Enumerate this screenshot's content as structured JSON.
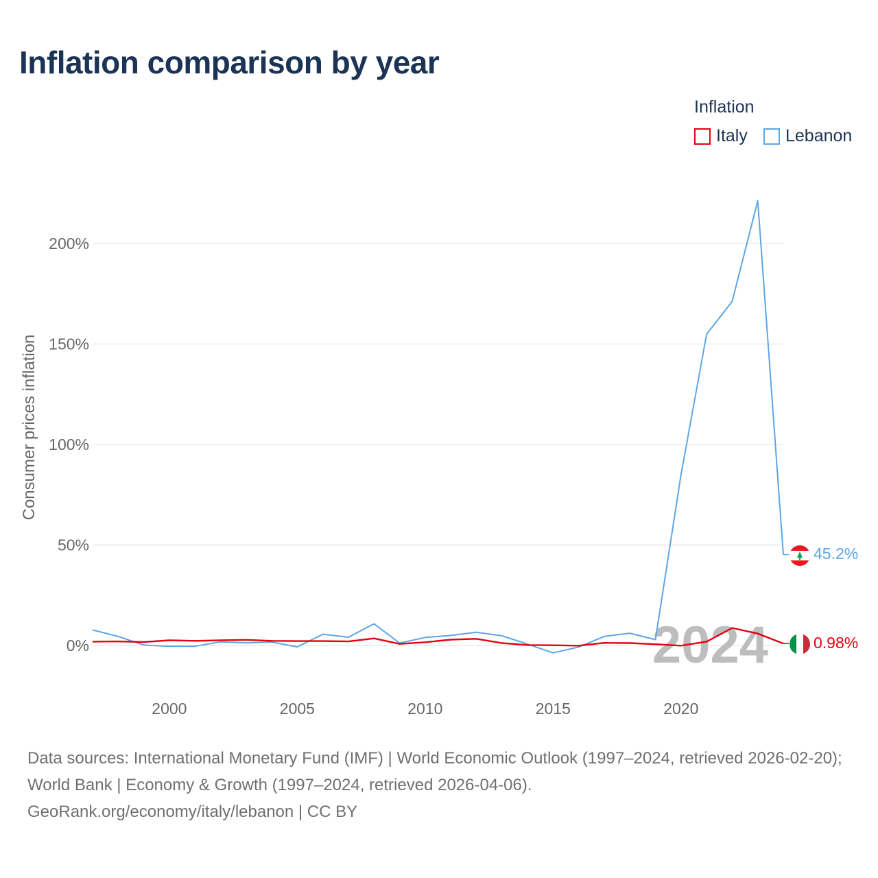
{
  "title": "Inflation comparison by year",
  "legend": {
    "title": "Inflation",
    "items": [
      {
        "label": "Italy",
        "color": "#e3000f"
      },
      {
        "label": "Lebanon",
        "color": "#5da5e6"
      }
    ]
  },
  "footer": {
    "sources": "Data sources: International Monetary Fund (IMF) | World Economic Outlook (1997–2024, retrieved 2026-02-20); World Bank | Economy & Growth (1997–2024, retrieved 2026-04-06).",
    "credit": "GeoRank.org/economy/italy/lebanon | CC BY"
  },
  "chart_data": {
    "type": "line",
    "title": "Inflation comparison by year",
    "xlabel": "",
    "ylabel": "Consumer prices inflation",
    "xlim": [
      1997,
      2024
    ],
    "ylim": [
      -20,
      225
    ],
    "x_ticks": [
      2000,
      2005,
      2010,
      2015,
      2020
    ],
    "y_ticks": [
      0,
      50,
      100,
      150,
      200
    ],
    "y_tick_labels": [
      "0%",
      "50%",
      "100%",
      "150%",
      "200%"
    ],
    "grid": true,
    "highlight_year": "2024",
    "x": [
      1997,
      1998,
      1999,
      2000,
      2001,
      2002,
      2003,
      2004,
      2005,
      2006,
      2007,
      2008,
      2009,
      2010,
      2011,
      2012,
      2013,
      2014,
      2015,
      2016,
      2017,
      2018,
      2019,
      2020,
      2021,
      2022,
      2023,
      2024
    ],
    "series": [
      {
        "name": "Italy",
        "color": "#e3000f",
        "end_label": "0.98%",
        "values": [
          1.9,
          2.0,
          1.7,
          2.6,
          2.3,
          2.6,
          2.8,
          2.3,
          2.2,
          2.2,
          2.0,
          3.5,
          0.8,
          1.6,
          2.9,
          3.3,
          1.2,
          0.2,
          0.1,
          -0.1,
          1.3,
          1.2,
          0.6,
          -0.1,
          1.9,
          8.7,
          5.9,
          0.98
        ]
      },
      {
        "name": "Lebanon",
        "color": "#5da5e6",
        "end_label": "45.2%",
        "values": [
          7.7,
          4.5,
          0.2,
          -0.4,
          -0.4,
          1.8,
          1.3,
          1.7,
          -0.7,
          5.6,
          4.1,
          10.8,
          1.2,
          4.0,
          5.0,
          6.6,
          4.8,
          0.7,
          -3.7,
          -0.8,
          4.5,
          6.1,
          2.9,
          84.9,
          154.8,
          171.2,
          221.3,
          45.2
        ]
      }
    ]
  }
}
